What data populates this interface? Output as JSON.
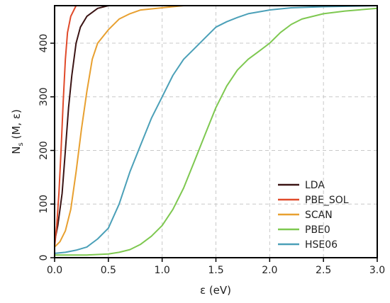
{
  "chart_data": {
    "type": "line",
    "title": "",
    "xlabel": "ε (eV)",
    "ylabel_main": "N",
    "ylabel_sub": "s",
    "ylabel_rest": " (M, ε)",
    "xlim": [
      0,
      3.0
    ],
    "ylim": [
      0,
      470
    ],
    "xticks": [
      0.0,
      0.5,
      1.0,
      1.5,
      2.0,
      2.5,
      3.0
    ],
    "xtick_labels": [
      "0.0",
      "0.5",
      "1.0",
      "1.5",
      "2.0",
      "2.5",
      "3.0"
    ],
    "yticks": [
      0,
      100,
      200,
      300,
      400
    ],
    "ytick_labels": [
      "0",
      "100",
      "200",
      "300",
      "400"
    ],
    "grid": true,
    "legend_position": "bottom-right",
    "series": [
      {
        "name": "LDA",
        "color": "#3b1414",
        "points": [
          [
            0.0,
            30
          ],
          [
            0.03,
            60
          ],
          [
            0.07,
            120
          ],
          [
            0.1,
            200
          ],
          [
            0.13,
            280
          ],
          [
            0.16,
            340
          ],
          [
            0.2,
            400
          ],
          [
            0.24,
            430
          ],
          [
            0.3,
            450
          ],
          [
            0.4,
            465
          ],
          [
            0.5,
            470
          ]
        ]
      },
      {
        "name": "PBE_SOL",
        "color": "#e04a2a",
        "points": [
          [
            0.0,
            20
          ],
          [
            0.02,
            60
          ],
          [
            0.04,
            120
          ],
          [
            0.06,
            200
          ],
          [
            0.08,
            290
          ],
          [
            0.1,
            370
          ],
          [
            0.12,
            420
          ],
          [
            0.15,
            450
          ],
          [
            0.2,
            470
          ]
        ]
      },
      {
        "name": "SCAN",
        "color": "#e8a030",
        "points": [
          [
            0.0,
            20
          ],
          [
            0.05,
            30
          ],
          [
            0.1,
            50
          ],
          [
            0.15,
            90
          ],
          [
            0.2,
            160
          ],
          [
            0.25,
            240
          ],
          [
            0.3,
            310
          ],
          [
            0.35,
            370
          ],
          [
            0.4,
            400
          ],
          [
            0.5,
            425
          ],
          [
            0.6,
            445
          ],
          [
            0.7,
            455
          ],
          [
            0.8,
            462
          ],
          [
            1.0,
            466
          ],
          [
            1.2,
            470
          ]
        ]
      },
      {
        "name": "PBE0",
        "color": "#7ec850",
        "points": [
          [
            0.0,
            5
          ],
          [
            0.3,
            5
          ],
          [
            0.5,
            7
          ],
          [
            0.6,
            10
          ],
          [
            0.7,
            15
          ],
          [
            0.8,
            25
          ],
          [
            0.9,
            40
          ],
          [
            1.0,
            60
          ],
          [
            1.1,
            90
          ],
          [
            1.2,
            130
          ],
          [
            1.3,
            180
          ],
          [
            1.4,
            230
          ],
          [
            1.5,
            280
          ],
          [
            1.6,
            320
          ],
          [
            1.7,
            350
          ],
          [
            1.8,
            370
          ],
          [
            1.9,
            385
          ],
          [
            2.0,
            400
          ],
          [
            2.1,
            420
          ],
          [
            2.2,
            435
          ],
          [
            2.3,
            445
          ],
          [
            2.5,
            455
          ],
          [
            2.7,
            460
          ],
          [
            3.0,
            465
          ]
        ]
      },
      {
        "name": "HSE06",
        "color": "#4ba0b8",
        "points": [
          [
            0.0,
            8
          ],
          [
            0.1,
            10
          ],
          [
            0.2,
            14
          ],
          [
            0.3,
            20
          ],
          [
            0.4,
            35
          ],
          [
            0.5,
            55
          ],
          [
            0.6,
            100
          ],
          [
            0.7,
            160
          ],
          [
            0.8,
            210
          ],
          [
            0.9,
            260
          ],
          [
            1.0,
            300
          ],
          [
            1.1,
            340
          ],
          [
            1.2,
            370
          ],
          [
            1.3,
            390
          ],
          [
            1.4,
            410
          ],
          [
            1.5,
            430
          ],
          [
            1.6,
            440
          ],
          [
            1.7,
            448
          ],
          [
            1.8,
            455
          ],
          [
            2.0,
            462
          ],
          [
            2.2,
            466
          ],
          [
            2.5,
            468
          ],
          [
            3.0,
            470
          ]
        ]
      }
    ]
  }
}
